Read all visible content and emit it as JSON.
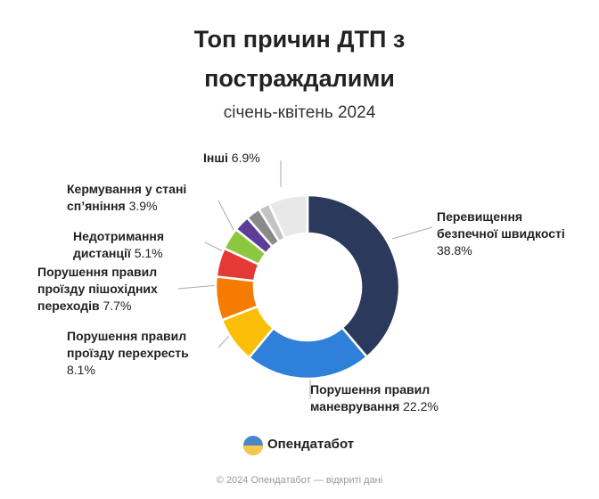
{
  "chart_data": {
    "type": "donut",
    "title": "Топ причин ДТП з постраждалими",
    "subtitle": "січень-квітень 2024",
    "categories": [
      "Перевищення безпечної швидкості",
      "Порушення правил маневрування",
      "Порушення правил проїзду перехресть",
      "Порушення правил проїзду пішохідних переходів",
      "Недотримання дистанції",
      "Кермування у стані сп’яніння",
      null,
      null,
      null,
      "Інші"
    ],
    "values": [
      38.8,
      22.2,
      8.1,
      7.7,
      5.1,
      3.9,
      2.8,
      2.5,
      2.0,
      6.9
    ],
    "value_labels": [
      "38.8%",
      "22.2%",
      "8.1%",
      "7.7%",
      "5.1%",
      "3.9%",
      null,
      null,
      null,
      "6.9%"
    ],
    "colors": [
      "#2b3a5c",
      "#2f80d8",
      "#fbbf0a",
      "#f57c00",
      "#e53935",
      "#8dc63f",
      "#5e3d99",
      "#8a8a8a",
      "#c4c4c4",
      "#e8e8e8"
    ],
    "brand": "Опендатабот",
    "footer": "© 2024 Опендатабот — відкриті дані"
  }
}
